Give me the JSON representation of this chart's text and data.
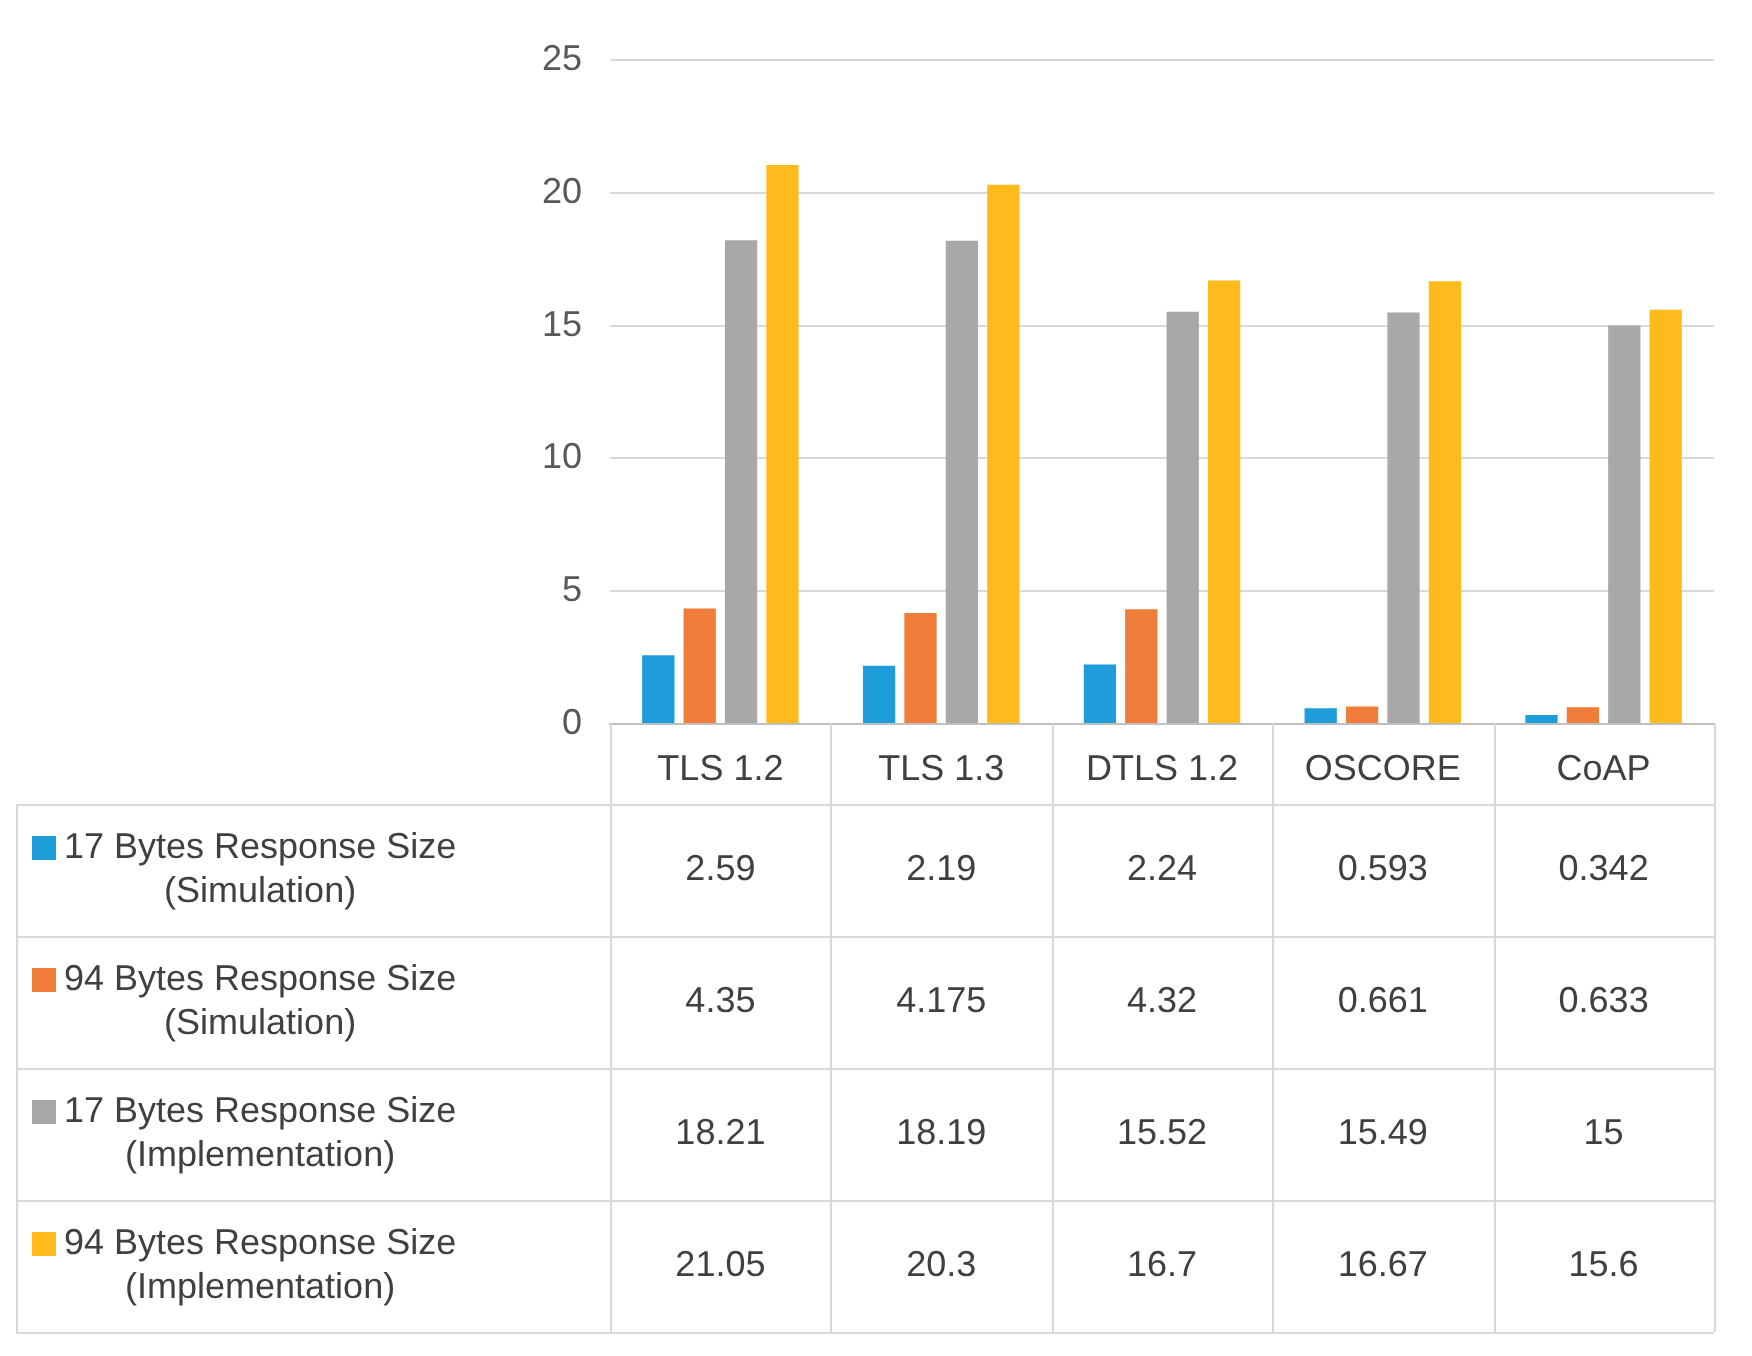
{
  "chart_data": {
    "type": "bar",
    "categories": [
      "TLS 1.2",
      "TLS 1.3",
      "DTLS 1.2",
      "OSCORE",
      "CoAP"
    ],
    "series": [
      {
        "name": "17 Bytes Response Size (Simulation)",
        "color": "#1f9ddb",
        "values": [
          2.59,
          2.19,
          2.24,
          0.593,
          0.342
        ]
      },
      {
        "name": "94 Bytes Response Size (Simulation)",
        "color": "#f07d3a",
        "values": [
          4.35,
          4.175,
          4.32,
          0.661,
          0.633
        ]
      },
      {
        "name": "17 Bytes Response Size (Implementation)",
        "color": "#a8a8a8",
        "values": [
          18.21,
          18.19,
          15.52,
          15.49,
          15
        ]
      },
      {
        "name": "94 Bytes Response Size (Implementation)",
        "color": "#ffbb1c",
        "values": [
          21.05,
          20.3,
          16.7,
          16.67,
          15.6
        ]
      }
    ],
    "ylim": [
      0,
      25
    ],
    "yticks": [
      0,
      5,
      10,
      15,
      20,
      25
    ],
    "grid": "y",
    "legend": "bottom left",
    "data_labels": true
  }
}
